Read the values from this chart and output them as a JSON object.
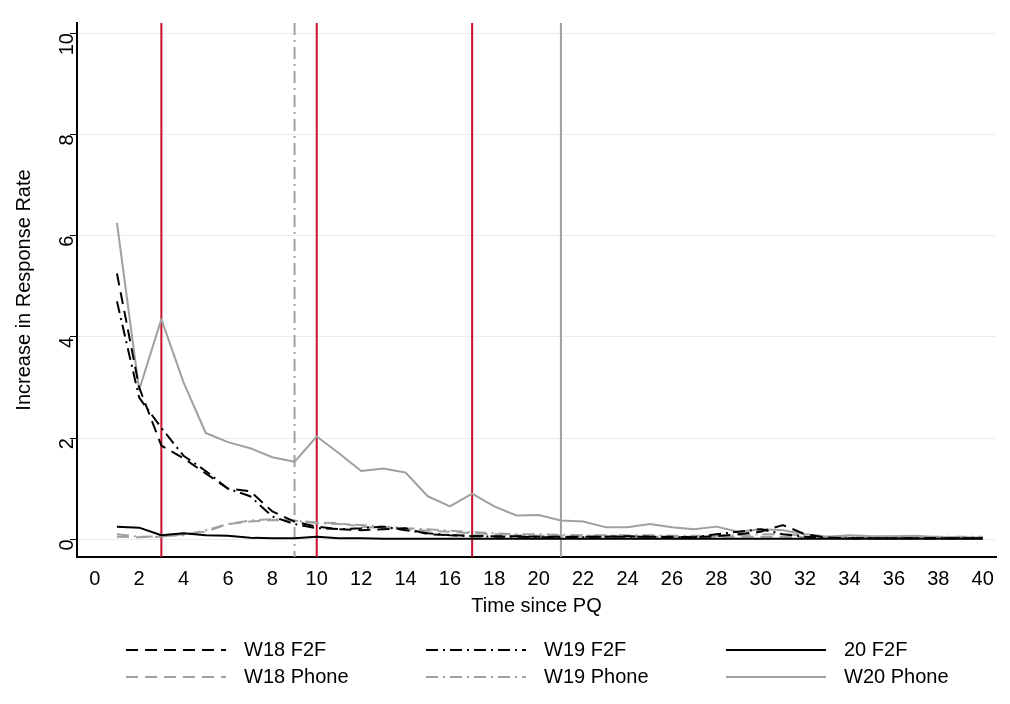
{
  "chart_data": {
    "type": "line",
    "xlabel": "Time since PQ",
    "ylabel": "Increase in Response Rate",
    "x": [
      1,
      2,
      3,
      4,
      5,
      6,
      7,
      8,
      9,
      10,
      11,
      12,
      13,
      14,
      15,
      16,
      17,
      18,
      19,
      20,
      21,
      22,
      23,
      24,
      25,
      26,
      27,
      28,
      29,
      30,
      31,
      32,
      33,
      34,
      35,
      36,
      37,
      38,
      39,
      40
    ],
    "series": [
      {
        "name": "W18 F2F",
        "color": "#000000",
        "line_style": "dashed",
        "values": [
          5.25,
          3.0,
          1.85,
          1.6,
          1.3,
          1.0,
          0.95,
          0.55,
          0.35,
          0.25,
          0.2,
          0.18,
          0.2,
          0.22,
          0.1,
          0.08,
          0.07,
          0.06,
          0.06,
          0.05,
          0.05,
          0.05,
          0.05,
          0.06,
          0.05,
          0.05,
          0.04,
          0.06,
          0.1,
          0.15,
          0.28,
          0.1,
          0.03,
          0.02,
          0.02,
          0.02,
          0.02,
          0.02,
          0.02,
          0.02
        ]
      },
      {
        "name": "W19 F2F",
        "color": "#000000",
        "line_style": "dashdot",
        "values": [
          4.7,
          2.8,
          2.2,
          1.65,
          1.35,
          1.0,
          0.85,
          0.45,
          0.3,
          0.22,
          0.2,
          0.22,
          0.25,
          0.18,
          0.12,
          0.08,
          0.06,
          0.05,
          0.05,
          0.04,
          0.04,
          0.04,
          0.05,
          0.05,
          0.05,
          0.04,
          0.04,
          0.1,
          0.15,
          0.2,
          0.1,
          0.05,
          0.03,
          0.02,
          0.02,
          0.02,
          0.02,
          0.02,
          0.02,
          0.02
        ]
      },
      {
        "name": "20 F2F",
        "color": "#000000",
        "line_style": "solid",
        "values": [
          0.25,
          0.23,
          0.08,
          0.12,
          0.08,
          0.07,
          0.03,
          0.02,
          0.02,
          0.05,
          0.02,
          0.02,
          0.01,
          0.01,
          0.01,
          0.01,
          0.01,
          0.01,
          0.01,
          0.01,
          0.01,
          0.01,
          0.01,
          0.01,
          0.01,
          0.01,
          0.01,
          0.01,
          0.01,
          0.01,
          0.01,
          0.01,
          0.01,
          0.01,
          0.01,
          0.01,
          0.01,
          0.01,
          0.01,
          0.01
        ]
      },
      {
        "name": "W18 Phone",
        "color": "#a0a0a0",
        "line_style": "dashed",
        "values": [
          0.05,
          0.04,
          0.05,
          0.1,
          0.15,
          0.3,
          0.35,
          0.38,
          0.37,
          0.33,
          0.32,
          0.25,
          0.22,
          0.2,
          0.17,
          0.15,
          0.12,
          0.1,
          0.08,
          0.07,
          0.07,
          0.06,
          0.06,
          0.06,
          0.05,
          0.05,
          0.05,
          0.05,
          0.05,
          0.05,
          0.05,
          0.04,
          0.04,
          0.04,
          0.03,
          0.03,
          0.03,
          0.03,
          0.03,
          0.03
        ]
      },
      {
        "name": "W19 Phone",
        "color": "#a0a0a0",
        "line_style": "dashdot",
        "values": [
          0.1,
          0.05,
          0.06,
          0.08,
          0.18,
          0.3,
          0.37,
          0.4,
          0.37,
          0.32,
          0.3,
          0.28,
          0.25,
          0.22,
          0.2,
          0.17,
          0.14,
          0.12,
          0.1,
          0.1,
          0.09,
          0.08,
          0.08,
          0.08,
          0.08,
          0.07,
          0.07,
          0.07,
          0.08,
          0.1,
          0.1,
          0.08,
          0.06,
          0.05,
          0.05,
          0.05,
          0.05,
          0.05,
          0.05,
          0.05
        ]
      },
      {
        "name": "W20 Phone",
        "color": "#a0a0a0",
        "line_style": "solid",
        "values": [
          6.25,
          2.95,
          4.35,
          3.1,
          2.1,
          1.92,
          1.8,
          1.62,
          1.53,
          2.03,
          1.7,
          1.35,
          1.4,
          1.32,
          0.85,
          0.65,
          0.9,
          0.65,
          0.47,
          0.48,
          0.37,
          0.35,
          0.24,
          0.24,
          0.3,
          0.24,
          0.2,
          0.25,
          0.15,
          0.2,
          0.18,
          0.1,
          0.05,
          0.08,
          0.06,
          0.06,
          0.07,
          0.04,
          0.04,
          0.03
        ]
      }
    ],
    "ref_lines": [
      {
        "axis": "x",
        "value": 3,
        "color": "#c8102e",
        "line_style": "solid"
      },
      {
        "axis": "x",
        "value": 9,
        "color": "#a0a0a0",
        "line_style": "dashdot"
      },
      {
        "axis": "x",
        "value": 10,
        "color": "#c8102e",
        "line_style": "solid"
      },
      {
        "axis": "x",
        "value": 17,
        "color": "#c8102e",
        "line_style": "solid"
      },
      {
        "axis": "x",
        "value": 21,
        "color": "#a0a0a0",
        "line_style": "solid"
      }
    ],
    "xlim": [
      -0.8,
      40.6
    ],
    "xticks": [
      0,
      2,
      4,
      6,
      8,
      10,
      12,
      14,
      16,
      18,
      20,
      22,
      24,
      26,
      28,
      30,
      32,
      34,
      36,
      38,
      40
    ],
    "ylim": [
      -0.35,
      10.2
    ],
    "yticks": [
      0,
      2,
      4,
      6,
      8,
      10
    ],
    "grid": "y",
    "legend": "bottom",
    "marker": "none"
  }
}
